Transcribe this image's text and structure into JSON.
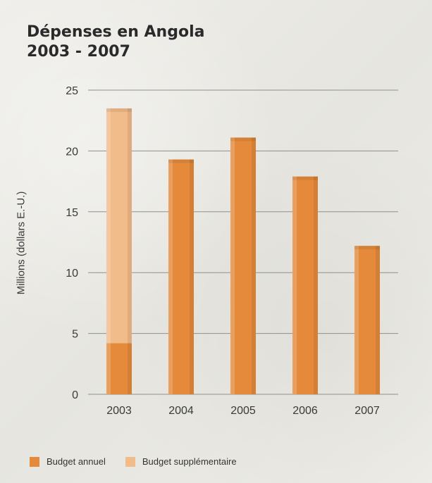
{
  "chart_data": {
    "type": "bar",
    "stacked": true,
    "title_lines": [
      "Dépenses en Angola",
      "2003 - 2007"
    ],
    "xlabel": "",
    "ylabel": "Millions (dollars E.-U.)",
    "categories": [
      "2003",
      "2004",
      "2005",
      "2006",
      "2007"
    ],
    "ylim": [
      0,
      25
    ],
    "yticks": [
      "0",
      "5",
      "10",
      "15",
      "20",
      "25"
    ],
    "grid": true,
    "legend_position": "bottom-left",
    "series": [
      {
        "name": "Budget annuel",
        "values": [
          4.2,
          19.3,
          21.1,
          17.9,
          12.2
        ],
        "color": "#e58a3a"
      },
      {
        "name": "Budget supplémentaire",
        "values": [
          19.3,
          0,
          0,
          0,
          0
        ],
        "color": "#f1bb8a"
      }
    ]
  }
}
